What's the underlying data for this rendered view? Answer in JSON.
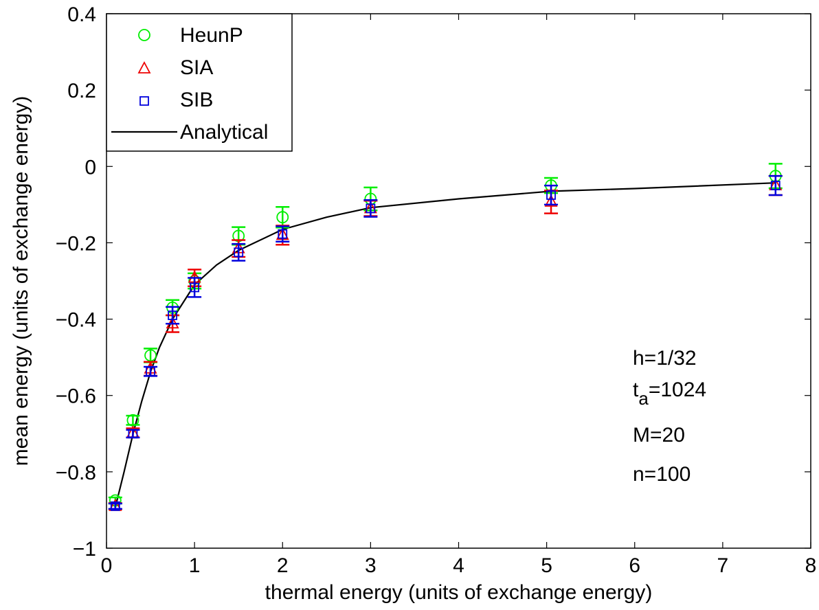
{
  "chart_data": {
    "type": "scatter",
    "xlabel": "thermal energy (units of exchange energy)",
    "ylabel": "mean energy (units of exchange energy)",
    "xlim": [
      0,
      8
    ],
    "ylim": [
      -1,
      0.4
    ],
    "xticks": [
      0,
      1,
      2,
      3,
      4,
      5,
      6,
      7,
      8
    ],
    "xtick_labels": [
      "0",
      "1",
      "2",
      "3",
      "4",
      "5",
      "6",
      "7",
      "8"
    ],
    "yticks": [
      -1,
      -0.8,
      -0.6,
      -0.4,
      -0.2,
      0,
      0.2,
      0.4
    ],
    "ytick_labels": [
      "−1",
      "−0.8",
      "−0.6",
      "−0.4",
      "−0.2",
      "0",
      "0.2",
      "0.4"
    ],
    "grid": false,
    "legend_position": "top-left",
    "series": [
      {
        "name": "HeunP",
        "marker": "circle",
        "color": "#00ee00",
        "x": [
          0.1,
          0.3,
          0.5,
          0.75,
          1.0,
          1.5,
          2.0,
          3.0,
          5.05,
          7.6
        ],
        "y": [
          -0.875,
          -0.665,
          -0.495,
          -0.37,
          -0.3,
          -0.182,
          -0.133,
          -0.085,
          -0.05,
          -0.025
        ],
        "err": [
          0.008,
          0.012,
          0.018,
          0.02,
          0.02,
          0.023,
          0.027,
          0.03,
          0.02,
          0.032
        ]
      },
      {
        "name": "SIA",
        "marker": "triangle",
        "color": "#ee0000",
        "x": [
          0.1,
          0.3,
          0.5,
          0.75,
          1.0,
          1.5,
          2.0,
          3.0,
          5.05,
          7.6
        ],
        "y": [
          -0.89,
          -0.698,
          -0.53,
          -0.412,
          -0.292,
          -0.215,
          -0.18,
          -0.11,
          -0.093,
          -0.05
        ],
        "err": [
          0.008,
          0.012,
          0.018,
          0.022,
          0.022,
          0.022,
          0.025,
          0.02,
          0.03,
          0.025
        ]
      },
      {
        "name": "SIB",
        "marker": "square",
        "color": "#0000dd",
        "x": [
          0.1,
          0.3,
          0.5,
          0.75,
          1.0,
          1.5,
          2.0,
          3.0,
          5.05,
          7.6
        ],
        "y": [
          -0.89,
          -0.7,
          -0.537,
          -0.39,
          -0.317,
          -0.225,
          -0.177,
          -0.11,
          -0.075,
          -0.05
        ],
        "err": [
          0.007,
          0.01,
          0.012,
          0.022,
          0.025,
          0.022,
          0.02,
          0.022,
          0.025,
          0.025
        ]
      },
      {
        "name": "Analytical",
        "marker": "line",
        "color": "#000000",
        "x": [
          0.1,
          0.2,
          0.3,
          0.4,
          0.5,
          0.6,
          0.75,
          1.0,
          1.25,
          1.5,
          2.0,
          2.5,
          3.0,
          4.0,
          5.05,
          6.0,
          7.6
        ],
        "y": [
          -0.893,
          -0.8,
          -0.702,
          -0.615,
          -0.538,
          -0.475,
          -0.4,
          -0.31,
          -0.258,
          -0.22,
          -0.165,
          -0.133,
          -0.108,
          -0.085,
          -0.065,
          -0.058,
          -0.043
        ]
      }
    ],
    "annotations": {
      "h": "h=1/32",
      "t_prefix": "t",
      "t_sub": "a",
      "t_suffix": "=1024",
      "M": "M=20",
      "n": "n=100"
    }
  }
}
